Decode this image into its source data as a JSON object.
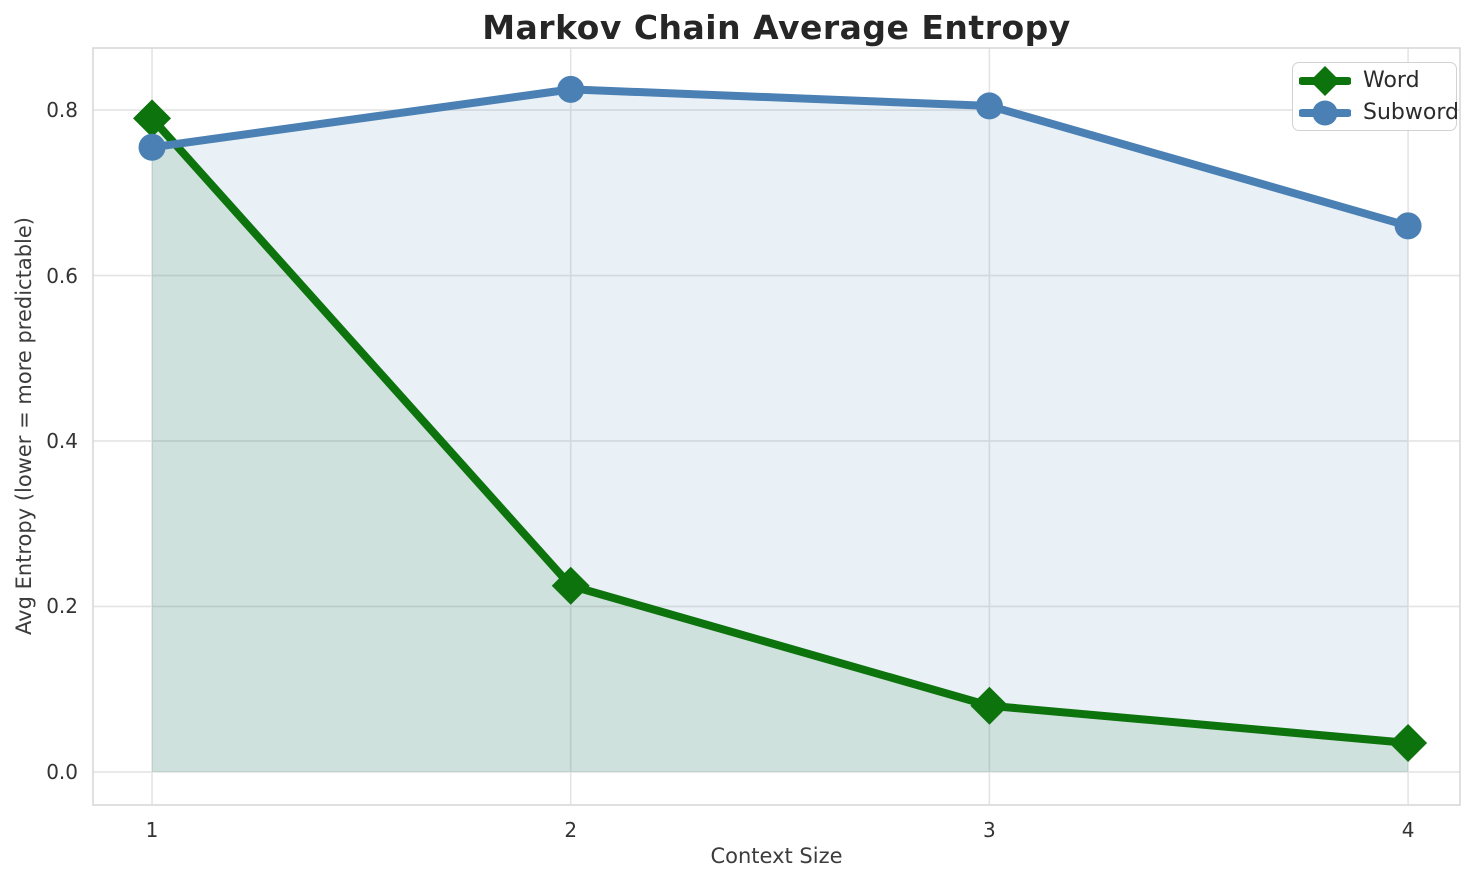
{
  "title": "Markov Chain Average Entropy",
  "chart_data": {
    "type": "line",
    "title": "Markov Chain Average Entropy",
    "xlabel": "Context Size",
    "ylabel": "Avg Entropy (lower = more predictable)",
    "x": [
      1,
      2,
      3,
      4
    ],
    "series": [
      {
        "name": "Word",
        "values": [
          0.79,
          0.225,
          0.08,
          0.035
        ],
        "color": "#0d730d",
        "marker": "diamond",
        "area": true
      },
      {
        "name": "Subword",
        "values": [
          0.755,
          0.825,
          0.805,
          0.66
        ],
        "color": "#4a80b4",
        "marker": "circle",
        "area": true
      }
    ],
    "xticks": [
      1,
      2,
      3,
      4
    ],
    "yticks": [
      0.0,
      0.2,
      0.4,
      0.6,
      0.8
    ],
    "xlim": [
      0.859,
      4.124
    ],
    "ylim": [
      -0.04,
      0.875
    ],
    "grid": true,
    "legend_position": "upper right",
    "area_opacity": 0.12
  },
  "style_colors": {
    "grid": "#e4e4e4",
    "spine": "#d8d8d8",
    "tick_text": "#333333",
    "title_text": "#262626"
  }
}
